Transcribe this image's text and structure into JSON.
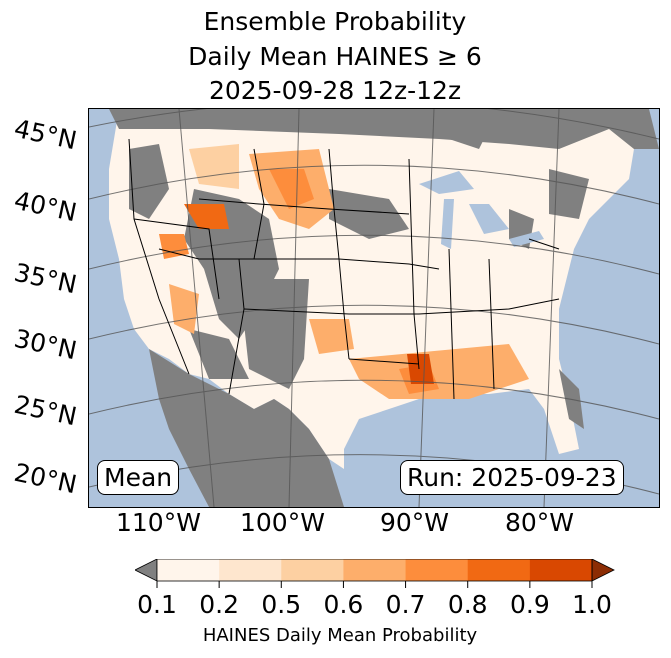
{
  "title": {
    "line1": "Ensemble Probability",
    "line2": "Daily Mean HAINES ≥ 6",
    "line3": "2025-09-28 12z-12z"
  },
  "lat_labels": [
    "45°N",
    "40°N",
    "35°N",
    "30°N",
    "25°N",
    "20°N"
  ],
  "lon_labels": [
    "110°W",
    "100°W",
    "90°W",
    "80°W"
  ],
  "stat_label": "Mean",
  "run_label": "Run: 2025-09-23",
  "colorbar": {
    "ticks": [
      "0.1",
      "0.2",
      "0.5",
      "0.6",
      "0.7",
      "0.8",
      "0.9",
      "1.0"
    ],
    "colors": [
      "#fff5eb",
      "#fee6ce",
      "#fdd0a2",
      "#fdae6b",
      "#fd8d3c",
      "#f16913",
      "#d94801"
    ],
    "under_color": "#808080",
    "over_color": "#8c2d04",
    "label": "HAINES Daily Mean Probability"
  },
  "colors": {
    "ocean": "#aec3dc",
    "nodata": "#808080",
    "land": "#fff5eb"
  }
}
